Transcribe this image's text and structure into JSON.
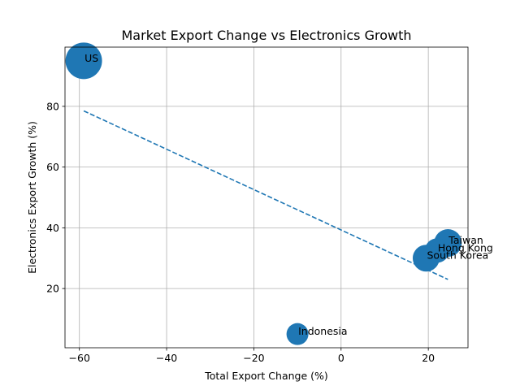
{
  "chart_data": {
    "type": "scatter",
    "title": "Market Export Change vs Electronics Growth",
    "xlabel": "Total Export Change (%)",
    "ylabel": "Electronics Export Growth (%)",
    "xlim": [
      -63.3,
      29.1
    ],
    "ylim": [
      0.5,
      99.5
    ],
    "xticks": [
      -60,
      -40,
      -20,
      0,
      20
    ],
    "yticks": [
      20,
      40,
      60,
      80
    ],
    "xtick_labels": [
      "−60",
      "−40",
      "−20",
      "0",
      "20"
    ],
    "ytick_labels": [
      "20",
      "40",
      "60",
      "80"
    ],
    "grid": true,
    "points": [
      {
        "label": "US",
        "x": -59.0,
        "y": 95.0,
        "size": 45
      },
      {
        "label": "Taiwan",
        "x": 24.5,
        "y": 35.0,
        "size": 34
      },
      {
        "label": "Hong Kong",
        "x": 22.0,
        "y": 32.5,
        "size": 30
      },
      {
        "label": "South Korea",
        "x": 19.5,
        "y": 30.0,
        "size": 33
      },
      {
        "label": "Indonesia",
        "x": -10.0,
        "y": 5.0,
        "size": 27
      }
    ],
    "trendline": {
      "x": [
        -59.0,
        24.5
      ],
      "y": [
        78.5,
        23.0
      ],
      "style": "dashed"
    },
    "marker_color": "#1f77b4",
    "trend_color": "#1f77b4"
  }
}
